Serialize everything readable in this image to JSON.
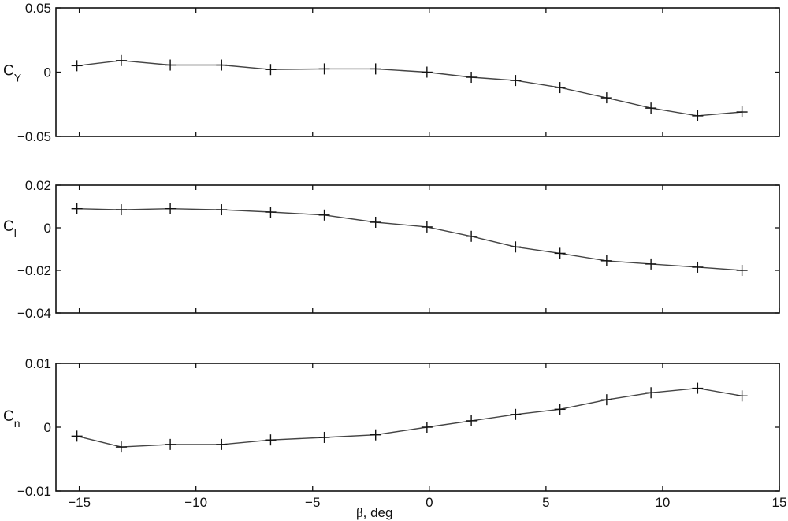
{
  "chart_data": [
    {
      "type": "line",
      "title": "",
      "ylabel": "C_Y",
      "ylabel_main": "C",
      "ylabel_sub": "Y",
      "xlabel": "",
      "ylim": [
        -0.05,
        0.05
      ],
      "yticks": [
        0.05,
        0,
        -0.05
      ],
      "ytick_labels": [
        "0.05",
        "0",
        "−0.05"
      ],
      "xlim": [
        -16,
        15
      ],
      "grid": false,
      "marker": "+",
      "x": [
        -15.1,
        -13.2,
        -11.1,
        -8.9,
        -6.8,
        -4.5,
        -2.3,
        -0.1,
        1.8,
        3.7,
        5.6,
        7.6,
        9.5,
        11.5,
        13.4
      ],
      "values": [
        0.005,
        0.009,
        0.0055,
        0.0055,
        0.002,
        0.0025,
        0.0025,
        0.0,
        -0.004,
        -0.0065,
        -0.012,
        -0.02,
        -0.028,
        -0.034,
        -0.031
      ]
    },
    {
      "type": "line",
      "title": "",
      "ylabel": "C_l",
      "ylabel_main": "C",
      "ylabel_sub": "l",
      "xlabel": "",
      "ylim": [
        -0.04,
        0.02
      ],
      "yticks": [
        0.02,
        0,
        -0.02,
        -0.04
      ],
      "ytick_labels": [
        "0.02",
        "0",
        "−0.02",
        "−0.04"
      ],
      "xlim": [
        -16,
        15
      ],
      "grid": false,
      "marker": "+",
      "x": [
        -15.1,
        -13.2,
        -11.1,
        -8.9,
        -6.8,
        -4.5,
        -2.3,
        -0.1,
        1.8,
        3.7,
        5.6,
        7.6,
        9.5,
        11.5,
        13.4
      ],
      "values": [
        0.009,
        0.0085,
        0.009,
        0.0085,
        0.0074,
        0.006,
        0.0026,
        0.0004,
        -0.004,
        -0.009,
        -0.012,
        -0.0155,
        -0.017,
        -0.0185,
        -0.02
      ]
    },
    {
      "type": "line",
      "title": "",
      "ylabel": "C_n",
      "ylabel_main": "C",
      "ylabel_sub": "n",
      "xlabel": "β, deg",
      "ylim": [
        -0.01,
        0.01
      ],
      "yticks": [
        0.01,
        0,
        -0.01
      ],
      "ytick_labels": [
        "0.01",
        "0",
        "−0.01"
      ],
      "xlim": [
        -16,
        15
      ],
      "xticks": [
        -15,
        -10,
        -5,
        0,
        5,
        10,
        15
      ],
      "xtick_labels": [
        "−15",
        "−10",
        "−5",
        "0",
        "5",
        "10",
        "15"
      ],
      "grid": false,
      "marker": "+",
      "x": [
        -15.1,
        -13.2,
        -11.1,
        -8.9,
        -6.8,
        -4.5,
        -2.3,
        -0.1,
        1.8,
        3.7,
        5.6,
        7.6,
        9.5,
        11.5,
        13.4
      ],
      "values": [
        -0.0014,
        -0.0031,
        -0.0027,
        -0.0027,
        -0.002,
        -0.0016,
        -0.0012,
        0.0,
        0.001,
        0.002,
        0.0028,
        0.0043,
        0.0054,
        0.0061,
        0.0049
      ]
    }
  ],
  "xaxis": {
    "label_symbol": "β",
    "label_rest": ", deg",
    "ticks": [
      -15,
      -10,
      -5,
      0,
      5,
      10,
      15
    ],
    "tick_labels": [
      "−15",
      "−10",
      "−5",
      "0",
      "5",
      "10",
      "15"
    ]
  },
  "colors": {
    "axes": "#111111",
    "line": "#444444",
    "marker": "#111111",
    "background": "#ffffff"
  }
}
